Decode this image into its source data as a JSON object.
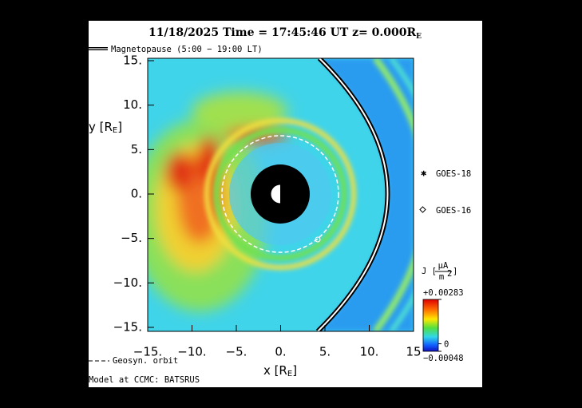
{
  "header": {
    "title": "11/18/2025 Time = 17:45:46 UT z= 0.000R",
    "title_sub": "E"
  },
  "chart_data": {
    "type": "heatmap",
    "xlabel": "x [R",
    "xlabel_sub": "E",
    "xlabel_end": "]",
    "ylabel": "y [R",
    "ylabel_sub": "E",
    "ylabel_end": "]",
    "xlim": [
      -15,
      15
    ],
    "ylim": [
      -15,
      15
    ],
    "xticks": [
      {
        "value": -15,
        "label": "−15."
      },
      {
        "value": -10,
        "label": "−10."
      },
      {
        "value": -5,
        "label": "−5."
      },
      {
        "value": 0,
        "label": "0."
      },
      {
        "value": 5,
        "label": "5."
      },
      {
        "value": 10,
        "label": "10."
      },
      15
    ],
    "yticks": [
      {
        "value": 15,
        "label": "15."
      },
      {
        "value": 10,
        "label": "10."
      },
      {
        "value": 5,
        "label": "5."
      },
      {
        "value": 0,
        "label": "0."
      },
      {
        "value": -5,
        "label": "−5."
      },
      {
        "value": -10,
        "label": "−10."
      },
      {
        "value": -15,
        "label": "−15."
      }
    ],
    "colorbar": {
      "label": "J [",
      "unit_num": "μA",
      "unit_den": "m",
      "unit_sup": "2",
      "label_end": "]",
      "clim": [
        -0.00048,
        0.00283
      ],
      "ticks": [
        {
          "value": 0.00283,
          "label": "+0.00283"
        },
        0,
        {
          "value": -0.00048,
          "label": "−0.00048"
        }
      ]
    },
    "legend": [
      {
        "name": "Magnetopause (5:00 − 19:00 LT)"
      },
      {
        "name": "Geosyn. orbit"
      }
    ],
    "satellites": [
      {
        "name": "GOES-18"
      },
      {
        "name": "GOES-16"
      }
    ]
  },
  "footer": "Model at CCMC: BATSRUS"
}
